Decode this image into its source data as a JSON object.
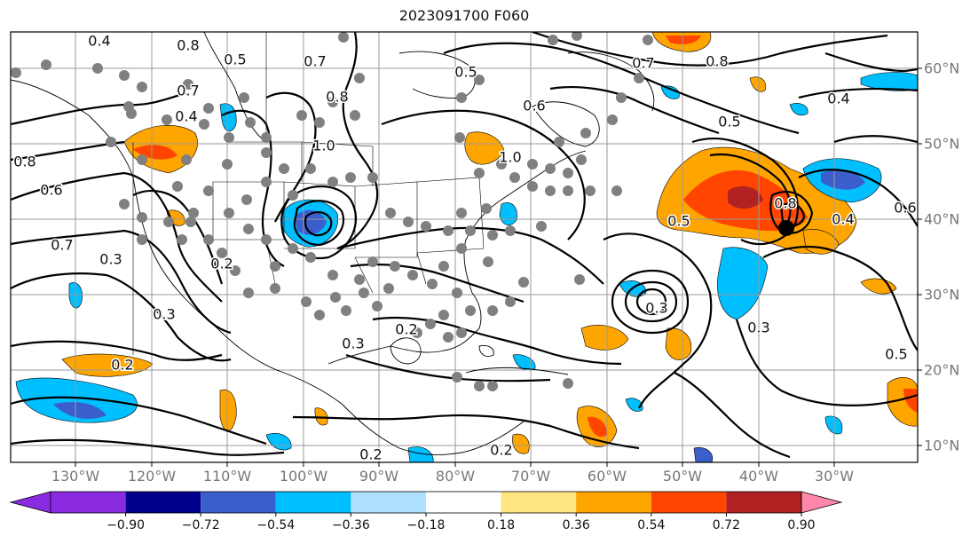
{
  "title": "2023091700 F060",
  "lon_labels": [
    "130°W",
    "120°W",
    "110°W",
    "100°W",
    "90°W",
    "80°W",
    "70°W",
    "60°W",
    "50°W",
    "40°W",
    "30°W"
  ],
  "lat_labels": [
    "60°N",
    "50°N",
    "40°N",
    "30°N",
    "20°N",
    "10°N"
  ],
  "contour_labels": [
    "0.4",
    "0.8",
    "0.5",
    "0.7",
    "0.5",
    "0.7",
    "0.6",
    "0.7",
    "0.4",
    "0.8",
    "1.0",
    "0.8",
    "0.6",
    "0.7",
    "0.3",
    "0.2",
    "0.3",
    "0.2",
    "0.3",
    "0.2",
    "0.2",
    "1.0",
    "0.5",
    "0.8",
    "0.4",
    "0.4",
    "0.3",
    "0.5",
    "0.6",
    "0.8",
    "0.5",
    "0.3",
    "0.2"
  ],
  "colorbar": {
    "colors": [
      "#8a2be2",
      "#00008b",
      "#3a5fcd",
      "#00bfff",
      "#b0e0ff",
      "#ffffff",
      "#ffe680",
      "#ffa500",
      "#ff4500",
      "#b22222",
      "#ff88aa"
    ],
    "tick_labels": [
      "−0.90",
      "−0.72",
      "−0.54",
      "−0.36",
      "−0.18",
      "0.18",
      "0.36",
      "0.54",
      "0.72",
      "0.90"
    ]
  },
  "legend_colors": {
    "orange": "#ffa500",
    "red": "#ff4500",
    "light_blue": "#00bfff",
    "blue": "#3a5fcd",
    "dot": "#808080",
    "center_dot": "#000000"
  }
}
